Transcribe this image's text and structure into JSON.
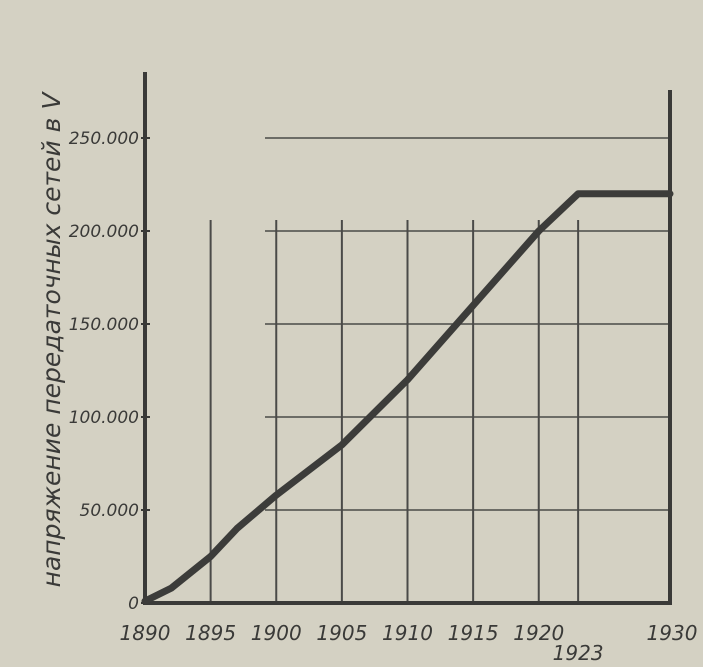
{
  "chart_data": {
    "type": "line",
    "title": "",
    "xlabel": "",
    "ylabel": "напряжение передаточных сетей в V",
    "x_ticks": [
      "1890",
      "1895",
      "1900",
      "1905",
      "1910",
      "1915",
      "1920",
      "1923",
      "1930"
    ],
    "y_ticks": [
      "0",
      "50.000",
      "100.000",
      "150.000",
      "200.000",
      "250.000"
    ],
    "xlim": [
      1890,
      1930
    ],
    "ylim": [
      0,
      250000
    ],
    "grid": true,
    "series": [
      {
        "points": [
          {
            "x": 1890,
            "y": 1000
          },
          {
            "x": 1892,
            "y": 8000
          },
          {
            "x": 1895,
            "y": 25000
          },
          {
            "x": 1897,
            "y": 40000
          },
          {
            "x": 1900,
            "y": 58000
          },
          {
            "x": 1905,
            "y": 85000
          },
          {
            "x": 1910,
            "y": 120000
          },
          {
            "x": 1915,
            "y": 160000
          },
          {
            "x": 1920,
            "y": 200000
          },
          {
            "x": 1923,
            "y": 220000
          },
          {
            "x": 1930,
            "y": 220000
          }
        ]
      }
    ]
  },
  "colors": {
    "background": "#d4d1c3",
    "ink": "#3a3a38",
    "line": "#3c3c3a",
    "grid": "#4a4a48"
  }
}
